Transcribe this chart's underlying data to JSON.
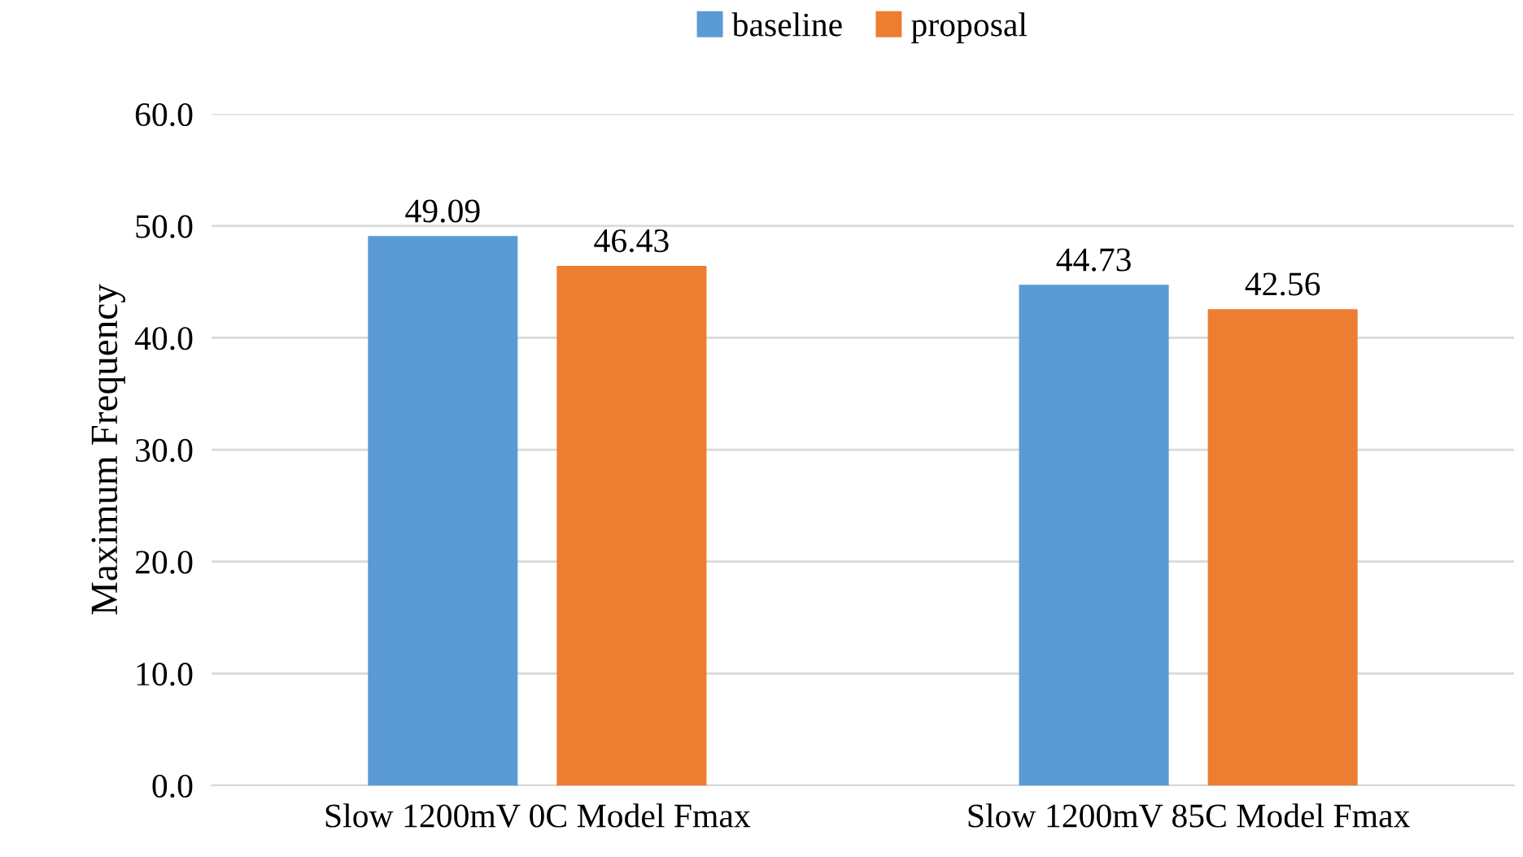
{
  "chart_data": {
    "type": "bar",
    "ylabel": "Maximum Frequency",
    "categories": [
      "Slow 1200mV 0C Model Fmax",
      "Slow 1200mV 85C Model Fmax"
    ],
    "series": [
      {
        "name": "baseline",
        "color": "#5b9bd5",
        "values": [
          49.09,
          44.73
        ]
      },
      {
        "name": "proposal",
        "color": "#ed7d31",
        "values": [
          46.43,
          42.56
        ]
      }
    ],
    "ylim": [
      0,
      60
    ],
    "yticks": [
      {
        "value": 0,
        "label": "0.0"
      },
      {
        "value": 10,
        "label": "10.0"
      },
      {
        "value": 20,
        "label": "20.0"
      },
      {
        "value": 30,
        "label": "30.0"
      },
      {
        "value": 40,
        "label": "40.0"
      },
      {
        "value": 50,
        "label": "50.0"
      },
      {
        "value": 60,
        "label": "60.0"
      }
    ],
    "grid": "y",
    "legend": "top",
    "data_labels": true
  }
}
